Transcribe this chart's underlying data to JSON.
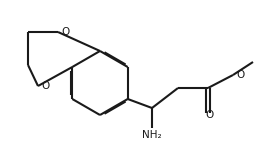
{
  "bg_color": "#ffffff",
  "line_color": "#1a1a1a",
  "lw": 1.5,
  "dbo": 0.006,
  "label_O_top": "O",
  "label_O_bot": "O",
  "label_O_ester": "O",
  "label_O_carbonyl": "O",
  "label_NH2": "NH₂",
  "fs": 7.5
}
